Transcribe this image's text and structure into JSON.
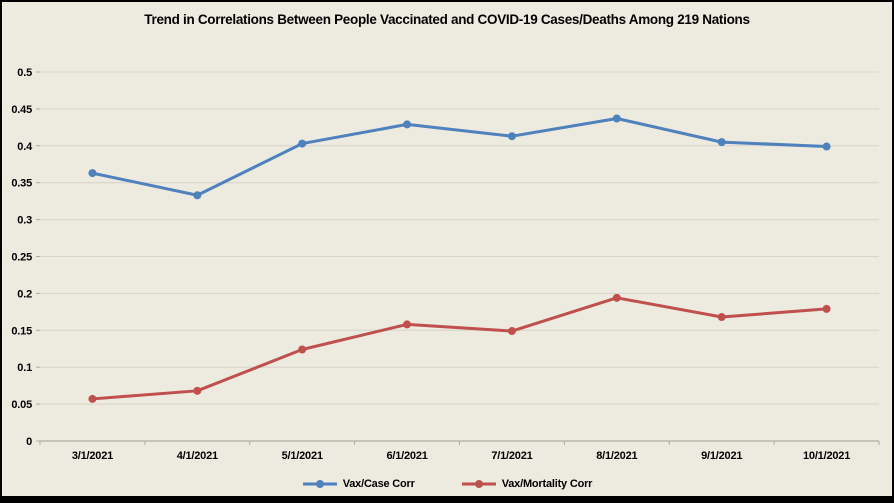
{
  "window": {
    "background_color": "#edeae0",
    "border_color": "#000000"
  },
  "chart_data": {
    "type": "line",
    "title": "Trend in Correlations Between People Vaccinated and COVID-19 Cases/Deaths Among 219 Nations",
    "categories": [
      "3/1/2021",
      "4/1/2021",
      "5/1/2021",
      "6/1/2021",
      "7/1/2021",
      "8/1/2021",
      "9/1/2021",
      "10/1/2021"
    ],
    "series": [
      {
        "name": "Vax/Case Corr",
        "color": "#4f81bd",
        "values": [
          0.363,
          0.333,
          0.403,
          0.429,
          0.413,
          0.437,
          0.405,
          0.399
        ]
      },
      {
        "name": "Vax/Mortality Corr",
        "color": "#c0504d",
        "values": [
          0.057,
          0.068,
          0.124,
          0.158,
          0.149,
          0.194,
          0.168,
          0.179
        ]
      }
    ],
    "xlabel": "",
    "ylabel": "",
    "ylim": [
      0,
      0.5
    ],
    "ytick_step": 0.05,
    "ytick_labels": [
      "0",
      "0.05",
      "0.1",
      "0.15",
      "0.2",
      "0.25",
      "0.3",
      "0.35",
      "0.4",
      "0.45",
      "0.5"
    ],
    "grid": true,
    "legend_position": "bottom",
    "gridline_color": "#d7d4ca",
    "axis_color": "#aeaba1",
    "text_color": "#000000",
    "marker": "circle",
    "line_width": 3,
    "marker_radius": 4
  }
}
